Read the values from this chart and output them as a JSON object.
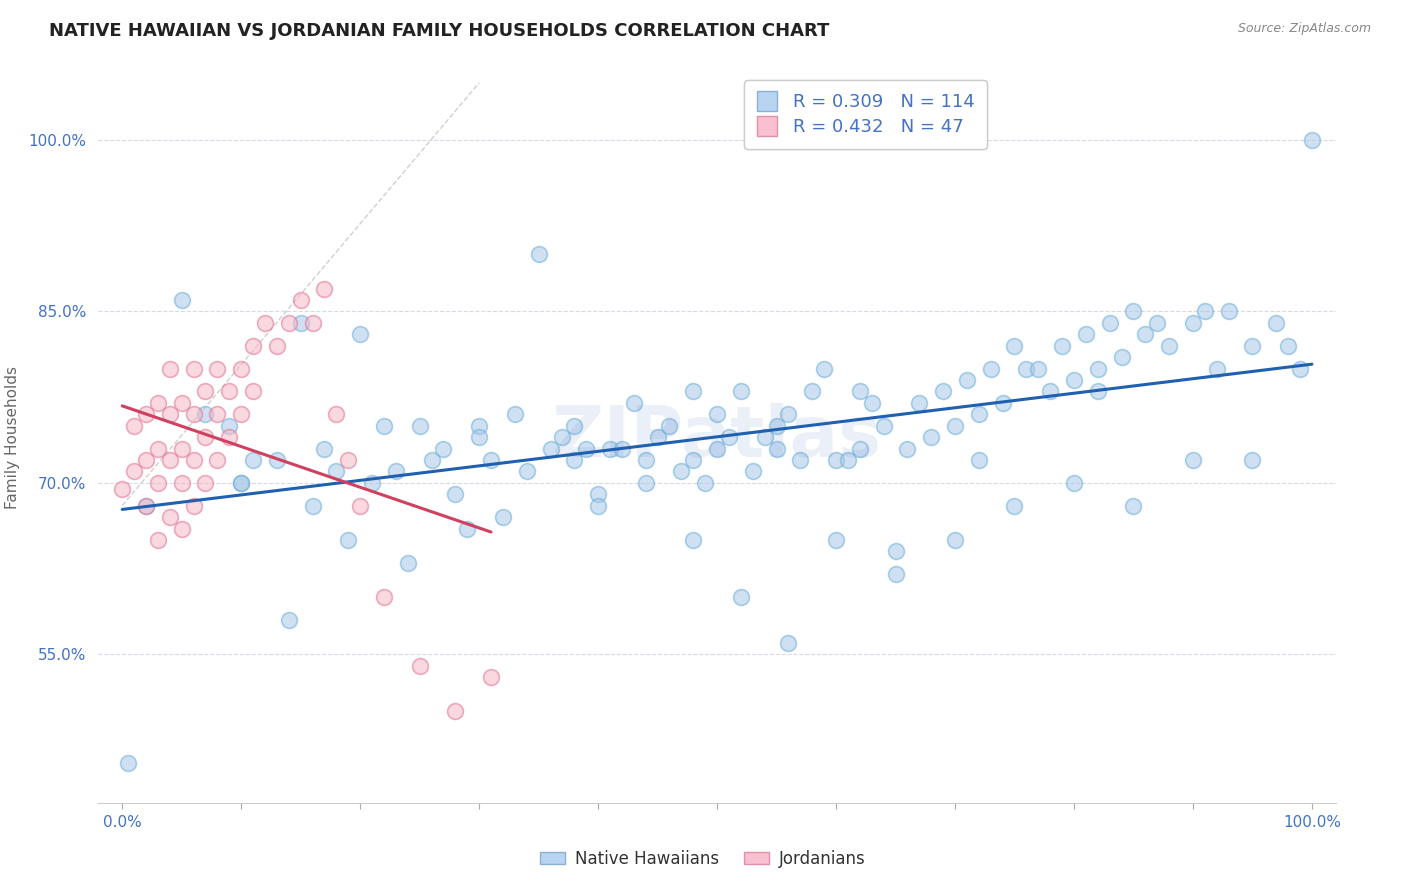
{
  "title": "NATIVE HAWAIIAN VS JORDANIAN FAMILY HOUSEHOLDS CORRELATION CHART",
  "source": "Source: ZipAtlas.com",
  "ylabel": "Family Households",
  "watermark": "ZIPatlas",
  "xlim": [
    -0.02,
    1.02
  ],
  "ylim": [
    0.42,
    1.06
  ],
  "y_ticks": [
    0.55,
    0.7,
    0.85,
    1.0
  ],
  "y_tick_labels": [
    "55.0%",
    "70.0%",
    "85.0%",
    "100.0%"
  ],
  "x_tick_labels_show": [
    "0.0%",
    "100.0%"
  ],
  "legend_R_blue": "0.309",
  "legend_N_blue": "114",
  "legend_R_pink": "0.432",
  "legend_N_pink": "47",
  "blue_face_color": "#a8c8e8",
  "blue_edge_color": "#6aaed6",
  "pink_face_color": "#f5b8c8",
  "pink_edge_color": "#e07090",
  "blue_line_color": "#2060b0",
  "pink_line_color": "#d04060",
  "diag_line_color": "#d0d0d0",
  "grid_color": "#d8d8e8",
  "tick_color": "#4472c4",
  "ylabel_color": "#666666",
  "title_color": "#222222",
  "source_color": "#888888",
  "watermark_color": "#4472c4",
  "background_color": "#ffffff",
  "scatter_size": 130,
  "scatter_alpha": 0.55,
  "line_width": 2.2,
  "blue_scatter_x": [
    0.005,
    0.02,
    0.05,
    0.07,
    0.09,
    0.1,
    0.11,
    0.13,
    0.15,
    0.17,
    0.18,
    0.2,
    0.21,
    0.22,
    0.23,
    0.25,
    0.26,
    0.27,
    0.28,
    0.3,
    0.3,
    0.31,
    0.33,
    0.34,
    0.35,
    0.36,
    0.37,
    0.38,
    0.39,
    0.4,
    0.41,
    0.42,
    0.43,
    0.44,
    0.45,
    0.46,
    0.47,
    0.48,
    0.49,
    0.5,
    0.5,
    0.51,
    0.52,
    0.53,
    0.54,
    0.55,
    0.56,
    0.57,
    0.58,
    0.59,
    0.6,
    0.61,
    0.62,
    0.63,
    0.64,
    0.65,
    0.66,
    0.67,
    0.68,
    0.69,
    0.7,
    0.71,
    0.72,
    0.73,
    0.74,
    0.75,
    0.76,
    0.77,
    0.78,
    0.79,
    0.8,
    0.81,
    0.82,
    0.83,
    0.84,
    0.85,
    0.86,
    0.87,
    0.88,
    0.9,
    0.91,
    0.92,
    0.93,
    0.95,
    0.97,
    0.98,
    0.99,
    1.0,
    0.1,
    0.14,
    0.16,
    0.19,
    0.24,
    0.29,
    0.32,
    0.4,
    0.44,
    0.48,
    0.52,
    0.56,
    0.6,
    0.65,
    0.7,
    0.75,
    0.8,
    0.85,
    0.9,
    0.95,
    0.38,
    0.48,
    0.55,
    0.62,
    0.72,
    0.82
  ],
  "blue_scatter_y": [
    0.455,
    0.68,
    0.86,
    0.76,
    0.75,
    0.7,
    0.72,
    0.72,
    0.84,
    0.73,
    0.71,
    0.83,
    0.7,
    0.75,
    0.71,
    0.75,
    0.72,
    0.73,
    0.69,
    0.75,
    0.74,
    0.72,
    0.76,
    0.71,
    0.9,
    0.73,
    0.74,
    0.75,
    0.73,
    0.69,
    0.73,
    0.73,
    0.77,
    0.72,
    0.74,
    0.75,
    0.71,
    0.72,
    0.7,
    0.73,
    0.76,
    0.74,
    0.78,
    0.71,
    0.74,
    0.73,
    0.76,
    0.72,
    0.78,
    0.8,
    0.72,
    0.72,
    0.73,
    0.77,
    0.75,
    0.64,
    0.73,
    0.77,
    0.74,
    0.78,
    0.75,
    0.79,
    0.76,
    0.8,
    0.77,
    0.82,
    0.8,
    0.8,
    0.78,
    0.82,
    0.79,
    0.83,
    0.8,
    0.84,
    0.81,
    0.85,
    0.83,
    0.84,
    0.82,
    0.84,
    0.85,
    0.8,
    0.85,
    0.82,
    0.84,
    0.82,
    0.8,
    1.0,
    0.7,
    0.58,
    0.68,
    0.65,
    0.63,
    0.66,
    0.67,
    0.68,
    0.7,
    0.65,
    0.6,
    0.56,
    0.65,
    0.62,
    0.65,
    0.68,
    0.7,
    0.68,
    0.72,
    0.72,
    0.72,
    0.78,
    0.75,
    0.78,
    0.72,
    0.78
  ],
  "pink_scatter_x": [
    0.0,
    0.01,
    0.01,
    0.02,
    0.02,
    0.02,
    0.03,
    0.03,
    0.03,
    0.03,
    0.04,
    0.04,
    0.04,
    0.04,
    0.05,
    0.05,
    0.05,
    0.05,
    0.06,
    0.06,
    0.06,
    0.06,
    0.07,
    0.07,
    0.07,
    0.08,
    0.08,
    0.08,
    0.09,
    0.09,
    0.1,
    0.1,
    0.11,
    0.11,
    0.12,
    0.13,
    0.14,
    0.15,
    0.16,
    0.17,
    0.18,
    0.19,
    0.2,
    0.22,
    0.25,
    0.28,
    0.31
  ],
  "pink_scatter_y": [
    0.695,
    0.71,
    0.75,
    0.68,
    0.72,
    0.76,
    0.65,
    0.7,
    0.73,
    0.77,
    0.67,
    0.72,
    0.76,
    0.8,
    0.66,
    0.7,
    0.73,
    0.77,
    0.68,
    0.72,
    0.76,
    0.8,
    0.7,
    0.74,
    0.78,
    0.72,
    0.76,
    0.8,
    0.74,
    0.78,
    0.76,
    0.8,
    0.78,
    0.82,
    0.84,
    0.82,
    0.84,
    0.86,
    0.84,
    0.87,
    0.76,
    0.72,
    0.68,
    0.6,
    0.54,
    0.5,
    0.53
  ]
}
